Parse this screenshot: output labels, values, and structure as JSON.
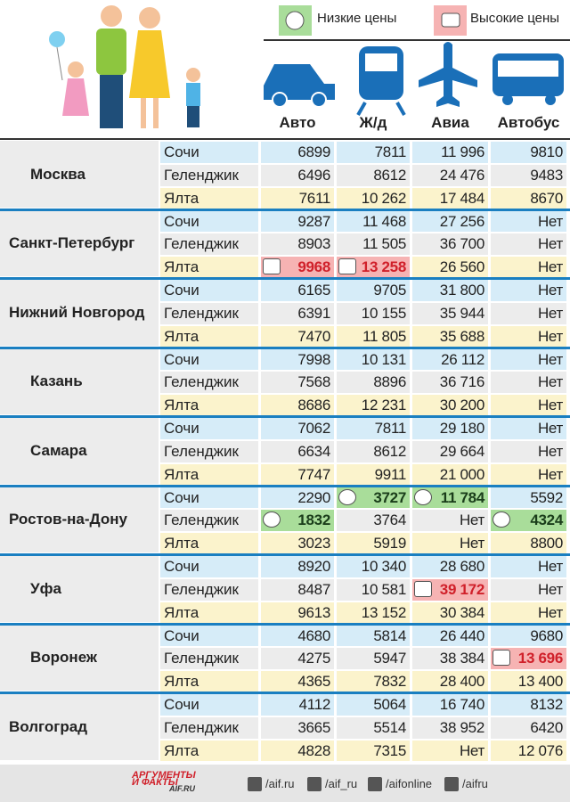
{
  "legend": {
    "low": "Низкие цены",
    "high": "Высокие цены"
  },
  "columns": [
    "Авто",
    "Ж/д",
    "Авиа",
    "Автобус"
  ],
  "cities": [
    {
      "name": "Москва",
      "rows": [
        {
          "dest": "Сочи",
          "values": [
            "6899",
            "7811",
            "11 996",
            "9810"
          ]
        },
        {
          "dest": "Геленджик",
          "values": [
            "6496",
            "8612",
            "24 476",
            "9483"
          ]
        },
        {
          "dest": "Ялта",
          "values": [
            "7611",
            "10 262",
            "17 484",
            "8670"
          ]
        }
      ]
    },
    {
      "name": "Санкт-Петербург",
      "rows": [
        {
          "dest": "Сочи",
          "values": [
            "9287",
            "11 468",
            "27 256",
            "Нет"
          ]
        },
        {
          "dest": "Геленджик",
          "values": [
            "8903",
            "11 505",
            "36 700",
            "Нет"
          ]
        },
        {
          "dest": "Ялта",
          "values": [
            "9968",
            "13 258",
            "26 560",
            "Нет"
          ],
          "high": [
            0,
            1
          ]
        }
      ]
    },
    {
      "name": "Нижний Новгород",
      "rows": [
        {
          "dest": "Сочи",
          "values": [
            "6165",
            "9705",
            "31 800",
            "Нет"
          ]
        },
        {
          "dest": "Геленджик",
          "values": [
            "6391",
            "10 155",
            "35 944",
            "Нет"
          ]
        },
        {
          "dest": "Ялта",
          "values": [
            "7470",
            "11 805",
            "35 688",
            "Нет"
          ]
        }
      ]
    },
    {
      "name": "Казань",
      "rows": [
        {
          "dest": "Сочи",
          "values": [
            "7998",
            "10 131",
            "26 112",
            "Нет"
          ]
        },
        {
          "dest": "Геленджик",
          "values": [
            "7568",
            "8896",
            "36 716",
            "Нет"
          ]
        },
        {
          "dest": "Ялта",
          "values": [
            "8686",
            "12 231",
            "30 200",
            "Нет"
          ]
        }
      ]
    },
    {
      "name": "Самара",
      "rows": [
        {
          "dest": "Сочи",
          "values": [
            "7062",
            "7811",
            "29 180",
            "Нет"
          ]
        },
        {
          "dest": "Геленджик",
          "values": [
            "6634",
            "8612",
            "29 664",
            "Нет"
          ]
        },
        {
          "dest": "Ялта",
          "values": [
            "7747",
            "9911",
            "21 000",
            "Нет"
          ]
        }
      ]
    },
    {
      "name": "Ростов-на-Дону",
      "rows": [
        {
          "dest": "Сочи",
          "values": [
            "2290",
            "3727",
            "11 784",
            "5592"
          ],
          "low": [
            1,
            2
          ]
        },
        {
          "dest": "Геленджик",
          "values": [
            "1832",
            "3764",
            "Нет",
            "4324"
          ],
          "low": [
            0,
            3
          ]
        },
        {
          "dest": "Ялта",
          "values": [
            "3023",
            "5919",
            "Нет",
            "8800"
          ]
        }
      ]
    },
    {
      "name": "Уфа",
      "rows": [
        {
          "dest": "Сочи",
          "values": [
            "8920",
            "10 340",
            "28 680",
            "Нет"
          ]
        },
        {
          "dest": "Геленджик",
          "values": [
            "8487",
            "10 581",
            "39 172",
            "Нет"
          ],
          "high": [
            2
          ]
        },
        {
          "dest": "Ялта",
          "values": [
            "9613",
            "13 152",
            "30 384",
            "Нет"
          ]
        }
      ]
    },
    {
      "name": "Воронеж",
      "rows": [
        {
          "dest": "Сочи",
          "values": [
            "4680",
            "5814",
            "26 440",
            "9680"
          ]
        },
        {
          "dest": "Геленджик",
          "values": [
            "4275",
            "5947",
            "38 384",
            "13 696"
          ],
          "high": [
            3
          ]
        },
        {
          "dest": "Ялта",
          "values": [
            "4365",
            "7832",
            "28 400",
            "13 400"
          ]
        }
      ]
    },
    {
      "name": "Волгоград",
      "rows": [
        {
          "dest": "Сочи",
          "values": [
            "4112",
            "5064",
            "16 740",
            "8132"
          ]
        },
        {
          "dest": "Геленджик",
          "values": [
            "3665",
            "5514",
            "38 952",
            "6420"
          ]
        },
        {
          "dest": "Ялта",
          "values": [
            "4828",
            "7315",
            "Нет",
            "12 076"
          ]
        }
      ]
    }
  ],
  "footer": {
    "logo": [
      "АРГУМЕНТЫ",
      "И ФАКТЫ",
      "AIF.RU"
    ],
    "social": [
      "/aif.ru",
      "/aif_ru",
      "/aifonline",
      "/aifru"
    ]
  }
}
